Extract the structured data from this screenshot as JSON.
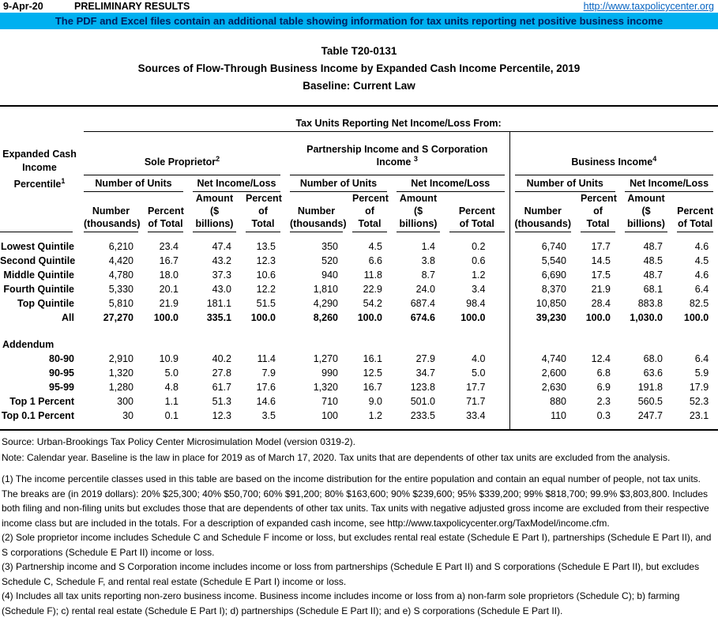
{
  "colors": {
    "banner_bg": "#00B0F0",
    "banner_fg": "#002060",
    "link_blue": "#0563C1"
  },
  "topbar": {
    "date": "9-Apr-20",
    "status": "PRELIMINARY RESULTS",
    "url": "http://www.taxpolicycenter.org"
  },
  "banner": "The PDF and Excel files contain an additional table showing information for tax units reporting net positive business income",
  "title": {
    "line1": "Table T20-0131",
    "line2": "Sources of Flow-Through Business Income by Expanded Cash Income Percentile, 2019",
    "line3": "Baseline: Current Law"
  },
  "table": {
    "row_header_lines": [
      "Expanded Cash",
      "Income",
      "Percentile"
    ],
    "row_header_sup": "1",
    "span_header": "Tax Units Reporting Net Income/Loss From:",
    "groups": [
      {
        "label": "Sole Proprietor",
        "sup": "2"
      },
      {
        "label": "Partnership Income and S Corporation Income ",
        "sup": "3"
      },
      {
        "label": "Business Income",
        "sup": "4"
      }
    ],
    "subgroups": [
      "Number of Units",
      "Net Income/Loss"
    ],
    "col_labels": [
      {
        "line1": "Number",
        "line2": "(thousands)"
      },
      {
        "line1": "Percent",
        "line2": "of Total"
      },
      {
        "line1": "Amount",
        "line2": "($ billions)"
      },
      {
        "line1": "Percent",
        "line2": "of Total"
      }
    ],
    "rows": [
      {
        "label": "Lowest Quintile",
        "bold": false,
        "values": [
          "6,210",
          "23.4",
          "47.4",
          "13.5",
          "350",
          "4.5",
          "1.4",
          "0.2",
          "6,740",
          "17.7",
          "48.7",
          "4.6"
        ]
      },
      {
        "label": "Second Quintile",
        "bold": false,
        "values": [
          "4,420",
          "16.7",
          "43.2",
          "12.3",
          "520",
          "6.6",
          "3.8",
          "0.6",
          "5,540",
          "14.5",
          "48.5",
          "4.5"
        ]
      },
      {
        "label": "Middle Quintile",
        "bold": false,
        "values": [
          "4,780",
          "18.0",
          "37.3",
          "10.6",
          "940",
          "11.8",
          "8.7",
          "1.2",
          "6,690",
          "17.5",
          "48.7",
          "4.6"
        ]
      },
      {
        "label": "Fourth Quintile",
        "bold": false,
        "values": [
          "5,330",
          "20.1",
          "43.0",
          "12.2",
          "1,810",
          "22.9",
          "24.0",
          "3.4",
          "8,370",
          "21.9",
          "68.1",
          "6.4"
        ]
      },
      {
        "label": "Top Quintile",
        "bold": false,
        "values": [
          "5,810",
          "21.9",
          "181.1",
          "51.5",
          "4,290",
          "54.2",
          "687.4",
          "98.4",
          "10,850",
          "28.4",
          "883.8",
          "82.5"
        ]
      },
      {
        "label": "All",
        "bold": true,
        "values": [
          "27,270",
          "100.0",
          "335.1",
          "100.0",
          "8,260",
          "100.0",
          "674.6",
          "100.0",
          "39,230",
          "100.0",
          "1,030.0",
          "100.0"
        ]
      }
    ],
    "addendum_label": "Addendum",
    "addendum_rows": [
      {
        "label": "80-90",
        "bold": false,
        "values": [
          "2,910",
          "10.9",
          "40.2",
          "11.4",
          "1,270",
          "16.1",
          "27.9",
          "4.0",
          "4,740",
          "12.4",
          "68.0",
          "6.4"
        ]
      },
      {
        "label": "90-95",
        "bold": false,
        "values": [
          "1,320",
          "5.0",
          "27.8",
          "7.9",
          "990",
          "12.5",
          "34.7",
          "5.0",
          "2,600",
          "6.8",
          "63.6",
          "5.9"
        ]
      },
      {
        "label": "95-99",
        "bold": false,
        "values": [
          "1,280",
          "4.8",
          "61.7",
          "17.6",
          "1,320",
          "16.7",
          "123.8",
          "17.7",
          "2,630",
          "6.9",
          "191.8",
          "17.9"
        ]
      },
      {
        "label": "Top 1 Percent",
        "bold": false,
        "values": [
          "300",
          "1.1",
          "51.3",
          "14.6",
          "710",
          "9.0",
          "501.0",
          "71.7",
          "880",
          "2.3",
          "560.5",
          "52.3"
        ]
      },
      {
        "label": "Top 0.1 Percent",
        "bold": false,
        "values": [
          "30",
          "0.1",
          "12.3",
          "3.5",
          "100",
          "1.2",
          "233.5",
          "33.4",
          "110",
          "0.3",
          "247.7",
          "23.1"
        ]
      }
    ]
  },
  "notes": {
    "source": "Source: Urban-Brookings Tax Policy Center Microsimulation Model (version 0319-2).",
    "note": "Note: Calendar year. Baseline is the law in place for 2019 as of March 17, 2020. Tax units that are dependents of other tax units are excluded from the analysis.",
    "fn1": "(1) The income percentile classes used in this table are based on the income distribution for the entire population and contain an equal number of people, not tax units. The breaks are (in 2019 dollars): 20% $25,300; 40% $50,700; 60% $91,200; 80% $163,600; 90% $239,600; 95% $339,200; 99% $818,700; 99.9% $3,803,800. Includes both filing and non-filing units but excludes those that are dependents of other tax units. Tax units with negative adjusted gross income are excluded from their respective income class but are included in the totals. For a description of expanded cash income, see http://www.taxpolicycenter.org/TaxModel/income.cfm.",
    "fn2": "(2)  Sole proprietor income includes Schedule C and Schedule F income or loss, but excludes rental real estate (Schedule E Part I), partnerships (Schedule E Part II), and S corporations (Schedule E Part II) income or loss.",
    "fn3": "(3) Partnership income and S Corporation income includes income or loss from partnerships (Schedule E Part II) and S corporations (Schedule E Part II), but excludes Schedule C, Schedule F, and rental real estate (Schedule E Part I) income or loss.",
    "fn4": "(4) Includes all tax units reporting non-zero business income. Business income includes income or loss from a) non-farm sole proprietors (Schedule C); b) farming (Schedule F); c) rental real estate (Schedule E Part I); d) partnerships (Schedule E Part II); and e) S corporations (Schedule E Part II)."
  }
}
